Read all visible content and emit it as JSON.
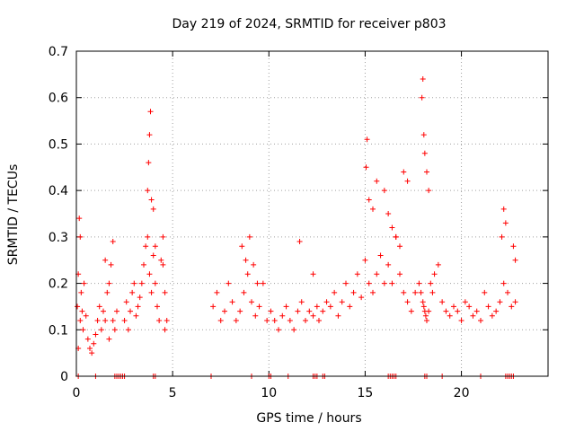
{
  "chart_data": {
    "type": "scatter",
    "title": "Day 219 of 2024, SRMTID for receiver p803",
    "xlabel": "GPS time / hours",
    "ylabel": "SRMTID / TECUs",
    "xlim": [
      0,
      24.5
    ],
    "ylim": [
      0,
      0.7
    ],
    "xticks": [
      0,
      5,
      10,
      15,
      20
    ],
    "xtick_labels": [
      "0",
      "5",
      "10",
      "15",
      "20"
    ],
    "yticks": [
      0,
      0.1,
      0.2,
      0.3,
      0.4,
      0.5,
      0.6,
      0.7
    ],
    "ytick_labels": [
      "0",
      "0.1",
      "0.2",
      "0.3",
      "0.4",
      "0.5",
      "0.6",
      "0.7"
    ],
    "grid": true,
    "marker": "plus",
    "marker_color": "#ff0000",
    "series": [
      {
        "name": "SRMTID",
        "x": [
          0.05,
          0.1,
          0.15,
          0.2,
          0.25,
          0.3,
          0.35,
          0.4,
          0.5,
          0.6,
          0.7,
          0.8,
          0.9,
          1.0,
          1.1,
          1.2,
          1.3,
          1.4,
          1.5,
          1.6,
          1.7,
          1.8,
          1.9,
          2.0,
          2.1,
          0.1,
          0.2,
          1.5,
          1.7,
          1.9,
          2.5,
          2.6,
          2.7,
          2.8,
          2.9,
          3.0,
          3.1,
          3.2,
          3.3,
          3.4,
          3.5,
          3.6,
          3.7,
          3.8,
          3.9,
          4.0,
          4.1,
          4.2,
          4.3,
          4.4,
          4.5,
          4.6,
          4.7,
          3.7,
          3.75,
          3.8,
          3.85,
          3.9,
          4.0,
          4.1,
          4.5,
          4.6,
          7.1,
          7.3,
          7.5,
          7.7,
          7.9,
          8.1,
          8.3,
          8.5,
          8.7,
          8.9,
          9.1,
          9.3,
          9.5,
          9.7,
          9.9,
          8.6,
          8.8,
          9.0,
          9.2,
          9.4,
          10.1,
          10.3,
          10.5,
          10.7,
          10.9,
          11.1,
          11.3,
          11.5,
          11.7,
          11.9,
          12.1,
          12.3,
          12.5,
          11.6,
          12.3,
          12.6,
          12.8,
          13.0,
          13.2,
          13.4,
          13.6,
          13.8,
          14.0,
          14.2,
          14.4,
          14.6,
          14.8,
          15.0,
          15.2,
          15.4,
          15.6,
          15.8,
          16.0,
          16.2,
          16.4,
          16.6,
          16.8,
          17.0,
          17.2,
          17.4,
          17.6,
          15.05,
          15.1,
          15.2,
          15.4,
          15.6,
          16.0,
          16.2,
          16.4,
          16.6,
          16.8,
          17.0,
          17.2,
          17.8,
          17.9,
          18.0,
          18.05,
          18.1,
          18.15,
          18.2,
          18.3,
          18.4,
          18.5,
          18.6,
          18.8,
          19.0,
          19.2,
          19.4,
          19.6,
          19.8,
          20.0,
          20.2,
          20.4,
          20.6,
          20.8,
          21.0,
          21.2,
          21.4,
          21.6,
          21.8,
          22.0,
          22.2,
          22.4,
          22.6,
          22.8,
          17.95,
          18.0,
          18.05,
          18.1,
          18.2,
          18.3,
          22.1,
          22.2,
          22.3,
          22.7,
          22.8
        ],
        "y": [
          0.15,
          0.22,
          0.34,
          0.12,
          0.18,
          0.14,
          0.1,
          0.2,
          0.13,
          0.08,
          0.06,
          0.05,
          0.07,
          0.09,
          0.12,
          0.15,
          0.1,
          0.14,
          0.12,
          0.18,
          0.2,
          0.24,
          0.12,
          0.1,
          0.14,
          0.06,
          0.3,
          0.25,
          0.08,
          0.29,
          0.12,
          0.16,
          0.1,
          0.14,
          0.18,
          0.2,
          0.13,
          0.15,
          0.17,
          0.2,
          0.24,
          0.28,
          0.3,
          0.22,
          0.18,
          0.26,
          0.2,
          0.15,
          0.12,
          0.25,
          0.3,
          0.18,
          0.12,
          0.4,
          0.46,
          0.52,
          0.57,
          0.38,
          0.36,
          0.28,
          0.24,
          0.1,
          0.15,
          0.18,
          0.12,
          0.14,
          0.2,
          0.16,
          0.12,
          0.14,
          0.18,
          0.22,
          0.16,
          0.13,
          0.15,
          0.2,
          0.12,
          0.28,
          0.25,
          0.3,
          0.24,
          0.2,
          0.14,
          0.12,
          0.1,
          0.13,
          0.15,
          0.12,
          0.1,
          0.14,
          0.16,
          0.12,
          0.14,
          0.13,
          0.15,
          0.29,
          0.22,
          0.12,
          0.14,
          0.16,
          0.15,
          0.18,
          0.13,
          0.16,
          0.2,
          0.15,
          0.18,
          0.22,
          0.17,
          0.25,
          0.2,
          0.18,
          0.22,
          0.26,
          0.2,
          0.24,
          0.2,
          0.3,
          0.22,
          0.18,
          0.16,
          0.14,
          0.18,
          0.45,
          0.51,
          0.38,
          0.36,
          0.42,
          0.4,
          0.35,
          0.32,
          0.3,
          0.28,
          0.44,
          0.42,
          0.2,
          0.18,
          0.16,
          0.15,
          0.14,
          0.13,
          0.12,
          0.14,
          0.2,
          0.18,
          0.22,
          0.24,
          0.16,
          0.14,
          0.13,
          0.15,
          0.14,
          0.12,
          0.16,
          0.15,
          0.13,
          0.14,
          0.12,
          0.18,
          0.15,
          0.13,
          0.14,
          0.16,
          0.2,
          0.18,
          0.15,
          0.16,
          0.6,
          0.64,
          0.52,
          0.48,
          0.44,
          0.4,
          0.3,
          0.36,
          0.33,
          0.28,
          0.25
        ]
      }
    ],
    "rug": {
      "y_value": 0,
      "x": [
        0.1,
        1.0,
        2.0,
        2.1,
        2.2,
        2.3,
        2.4,
        2.5,
        4.0,
        4.1,
        7.0,
        9.1,
        10.0,
        10.1,
        11.0,
        12.3,
        12.4,
        12.5,
        12.8,
        12.9,
        16.2,
        16.3,
        16.4,
        16.5,
        16.6,
        18.1,
        18.2,
        19.0,
        21.0,
        22.3,
        22.4,
        22.5,
        22.6,
        22.7
      ]
    }
  }
}
